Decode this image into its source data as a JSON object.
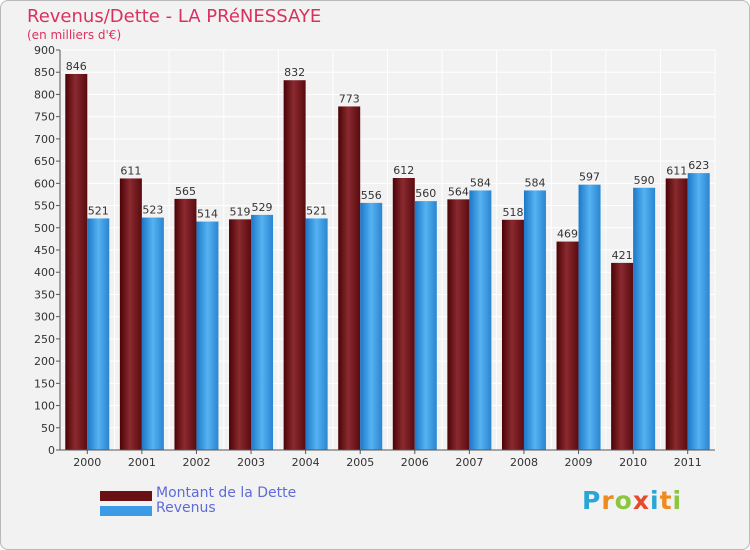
{
  "chart_data": {
    "type": "bar",
    "title": "Revenus/Dette - LA PRéNESSAYE",
    "subtitle": "(en milliers d'€)",
    "xlabel": "",
    "ylabel": "",
    "categories": [
      "2000",
      "2001",
      "2002",
      "2003",
      "2004",
      "2005",
      "2006",
      "2007",
      "2008",
      "2009",
      "2010",
      "2011"
    ],
    "series": [
      {
        "name": "Montant de la Dette",
        "color": "#7a1a1f",
        "values": [
          846,
          611,
          565,
          519,
          832,
          773,
          612,
          564,
          518,
          469,
          421,
          611
        ]
      },
      {
        "name": "Revenus",
        "color": "#3b9be6",
        "values": [
          521,
          523,
          514,
          529,
          521,
          556,
          560,
          584,
          584,
          597,
          590,
          623
        ]
      }
    ],
    "ylim": [
      0,
      900
    ],
    "yticks": [
      0,
      50,
      100,
      150,
      200,
      250,
      300,
      350,
      400,
      450,
      500,
      550,
      600,
      650,
      700,
      750,
      800,
      850,
      900
    ],
    "grid": true,
    "legend_position": "bottom-left"
  },
  "logo": {
    "text": "Proxiti",
    "letters": [
      {
        "ch": "P",
        "color": "#2aa5d6"
      },
      {
        "ch": "r",
        "color": "#f08a1c"
      },
      {
        "ch": "o",
        "color": "#8cc63f"
      },
      {
        "ch": "x",
        "color": "#e74a2a"
      },
      {
        "ch": "i",
        "color": "#2aa5d6"
      },
      {
        "ch": "t",
        "color": "#f08a1c"
      },
      {
        "ch": "i",
        "color": "#8cc63f"
      }
    ]
  }
}
